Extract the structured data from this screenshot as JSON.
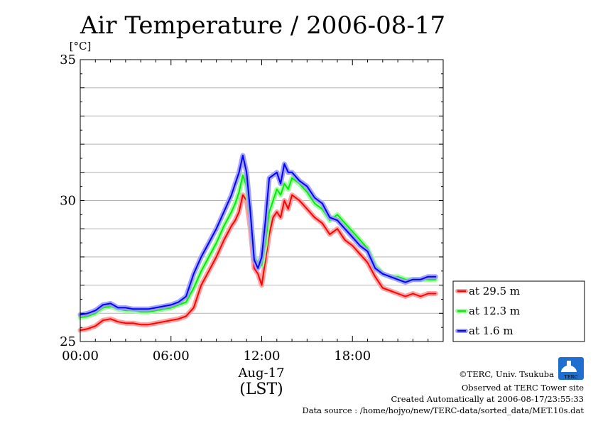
{
  "chart_data": {
    "type": "line",
    "title": "Air Temperature / 2006-08-17",
    "ylabel": "[°C]",
    "xlabel_date": "Aug-17",
    "xlabel_zone": "(LST)",
    "ylim": [
      25,
      35
    ],
    "xlim": [
      0,
      24
    ],
    "yticks": [
      "35",
      "30",
      "25"
    ],
    "ytick_values": [
      35,
      30,
      25
    ],
    "xticks": [
      "00:00",
      "06:00",
      "12:00",
      "18:00"
    ],
    "xtick_values": [
      0,
      6,
      12,
      18
    ],
    "grid": "horizontal every 1 °C",
    "legend_position": "right",
    "x": [
      0,
      0.5,
      1,
      1.5,
      2,
      2.5,
      3,
      3.5,
      4,
      4.5,
      5,
      5.5,
      6,
      6.5,
      7,
      7.5,
      8,
      8.5,
      9,
      9.5,
      10,
      10.25,
      10.5,
      10.75,
      11,
      11.25,
      11.5,
      11.75,
      12,
      12.25,
      12.5,
      12.75,
      13,
      13.25,
      13.5,
      13.75,
      14,
      14.5,
      15,
      15.5,
      16,
      16.5,
      17,
      17.5,
      18,
      18.5,
      19,
      19.5,
      20,
      20.5,
      21,
      21.5,
      22,
      22.5,
      23,
      23.5
    ],
    "series": [
      {
        "name": "at 29.5 m",
        "color": "#ff0000",
        "halo": "#ff9a9a",
        "values": [
          25.4,
          25.45,
          25.55,
          25.75,
          25.8,
          25.7,
          25.65,
          25.65,
          25.6,
          25.6,
          25.65,
          25.7,
          25.75,
          25.8,
          25.9,
          26.2,
          27.0,
          27.5,
          28.0,
          28.6,
          29.1,
          29.3,
          29.6,
          30.2,
          30.0,
          29.0,
          27.6,
          27.4,
          27.0,
          27.9,
          28.8,
          29.4,
          29.6,
          29.4,
          30.0,
          29.7,
          30.2,
          30.0,
          29.7,
          29.4,
          29.2,
          28.8,
          29.0,
          28.6,
          28.4,
          28.1,
          27.8,
          27.3,
          26.9,
          26.8,
          26.7,
          26.6,
          26.7,
          26.6,
          26.7,
          26.7
        ]
      },
      {
        "name": "at 12.3 m",
        "color": "#00ee00",
        "halo": "#9aff9a",
        "values": [
          25.85,
          25.9,
          26.0,
          26.2,
          26.25,
          26.15,
          26.1,
          26.1,
          26.05,
          26.05,
          26.1,
          26.15,
          26.2,
          26.3,
          26.4,
          26.9,
          27.5,
          28.0,
          28.5,
          29.1,
          29.6,
          29.9,
          30.3,
          30.9,
          30.5,
          29.5,
          28.0,
          27.8,
          27.7,
          28.5,
          29.6,
          30.0,
          30.4,
          30.2,
          30.6,
          30.4,
          30.8,
          30.6,
          30.3,
          29.9,
          29.7,
          29.3,
          29.5,
          29.2,
          28.9,
          28.6,
          28.3,
          27.7,
          27.4,
          27.3,
          27.3,
          27.2,
          27.2,
          27.2,
          27.2,
          27.2
        ]
      },
      {
        "name": "at 1.6 m",
        "color": "#0000ff",
        "halo": "#9a9aff",
        "values": [
          25.95,
          26.0,
          26.1,
          26.3,
          26.35,
          26.2,
          26.2,
          26.15,
          26.15,
          26.15,
          26.2,
          26.25,
          26.3,
          26.4,
          26.6,
          27.4,
          28.0,
          28.5,
          29.0,
          29.6,
          30.2,
          30.6,
          31.0,
          31.6,
          31.0,
          29.6,
          27.9,
          27.6,
          28.0,
          29.3,
          30.8,
          30.9,
          31.0,
          30.6,
          31.3,
          31.0,
          31.0,
          30.7,
          30.5,
          30.1,
          29.9,
          29.4,
          29.3,
          29.0,
          28.7,
          28.4,
          28.2,
          27.6,
          27.4,
          27.3,
          27.2,
          27.1,
          27.2,
          27.2,
          27.3,
          27.3
        ]
      }
    ]
  },
  "credits": {
    "copyright": "©TERC, Univ. Tsukuba",
    "observed": "Observed at TERC Tower site",
    "created": "Created Automatically at 2006-08-17/23:55:33",
    "source": "Data source : /home/hojyo/new/TERC-data/sorted_data/MET.10s.dat"
  },
  "logo": {
    "text": "TERC",
    "color": "#1f6fd0"
  }
}
